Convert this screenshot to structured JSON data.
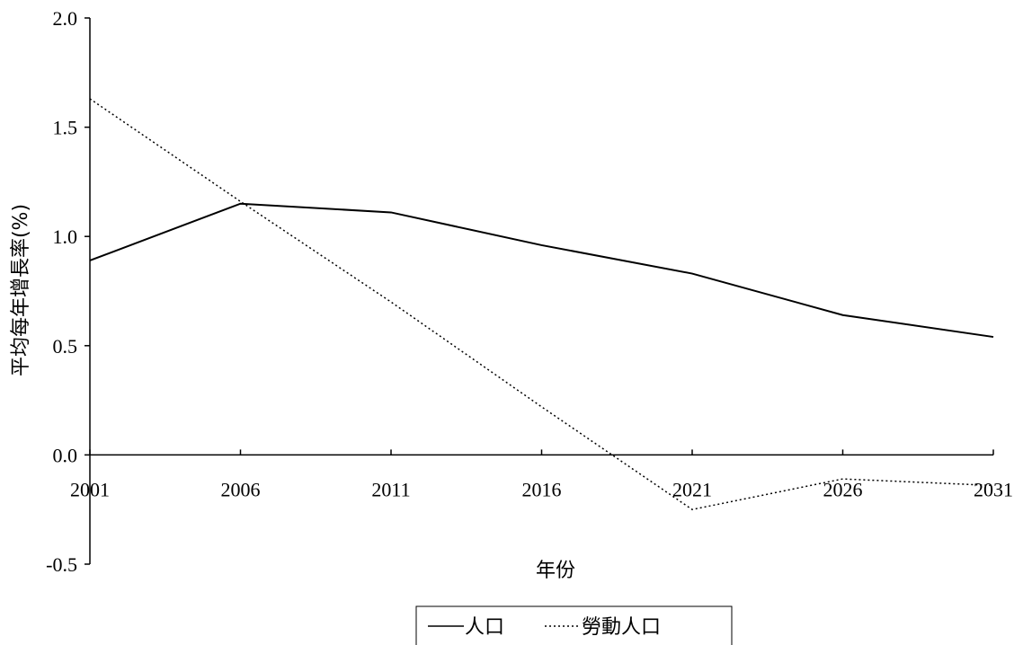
{
  "chart_data": {
    "type": "line",
    "title": "",
    "xlabel": "年份",
    "ylabel": "平均每年增長率(%)",
    "x": [
      "2001",
      "2006",
      "2011",
      "2016",
      "2021",
      "2026",
      "2031"
    ],
    "y_ticks": [
      "-0.5",
      "0.0",
      "0.5",
      "1.0",
      "1.5",
      "2.0"
    ],
    "ylim": [
      -0.5,
      2.0
    ],
    "grid": false,
    "legend_position": "bottom-center",
    "series": [
      {
        "name": "人口",
        "style": "solid",
        "color": "#000000",
        "values": [
          0.89,
          1.15,
          1.11,
          0.96,
          0.83,
          0.64,
          0.54
        ]
      },
      {
        "name": "勞動人口",
        "style": "dotted",
        "color": "#000000",
        "values": [
          1.63,
          1.16,
          0.7,
          0.22,
          -0.25,
          -0.11,
          -0.14
        ]
      }
    ]
  }
}
